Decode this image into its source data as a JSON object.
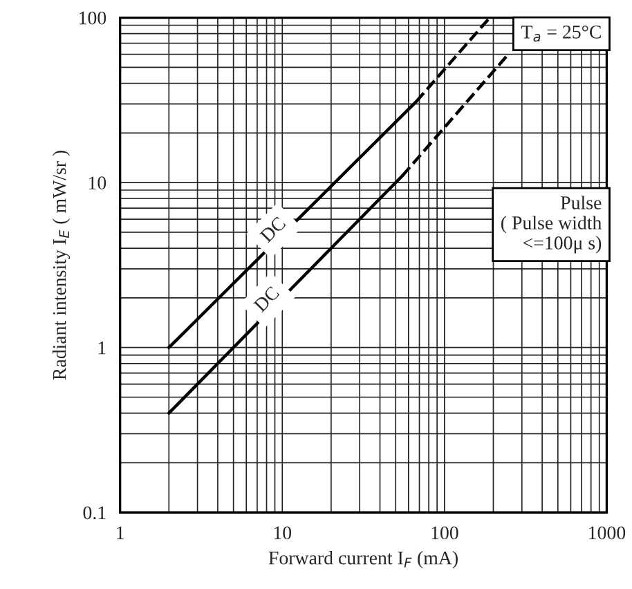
{
  "chart_data": {
    "type": "line",
    "xlabel": "Forward current I$_{F}$ (mA)",
    "ylabel": "Radiant intensity I$_{E}$ ( mW/sr )",
    "log": "xy",
    "xlim": [
      1,
      1000
    ],
    "ylim": [
      0.1,
      100
    ],
    "xticks": [
      1,
      10,
      100,
      1000
    ],
    "yticks": [
      0.1,
      1,
      10,
      100
    ],
    "grid": true,
    "legend": false,
    "series": [
      {
        "name": "DC",
        "color": "#000000",
        "x": [
          2,
          67
        ],
        "values": [
          1,
          31
        ],
        "line_style": "solid"
      },
      {
        "color": "#000000",
        "x": [
          67,
          190
        ],
        "values": [
          31,
          100
        ],
        "line_style": "dashed"
      },
      {
        "name": "DC",
        "color": "#000000",
        "x": [
          2,
          55
        ],
        "values": [
          0.4,
          11
        ],
        "line_style": "solid"
      },
      {
        "color": "#000000",
        "x": [
          55,
          240
        ],
        "values": [
          11,
          58
        ],
        "line_style": "dashed"
      }
    ],
    "annotations": [
      "T$_{a}$ = 25°C",
      "Pulse\n( Pulse width\n<=100μ s)"
    ]
  }
}
